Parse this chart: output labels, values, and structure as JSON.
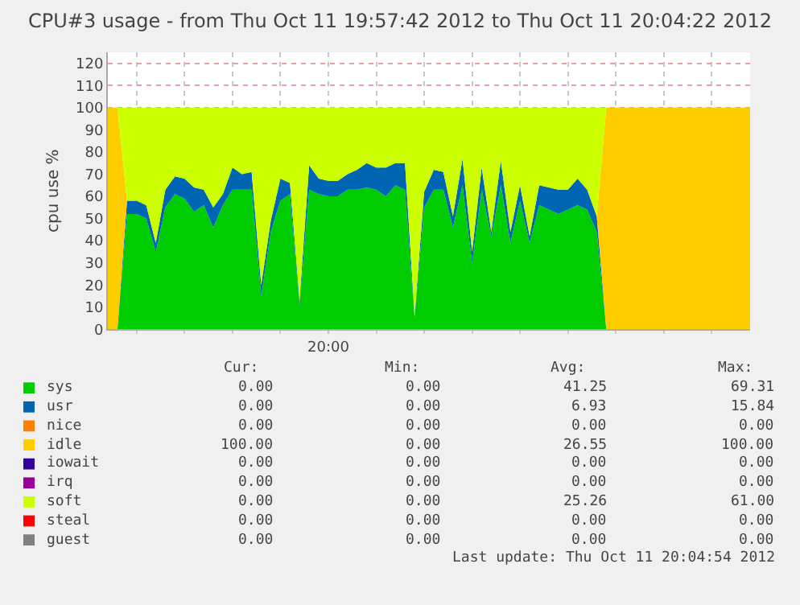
{
  "chart_data": {
    "type": "area",
    "stacked": true,
    "title": "CPU#3 usage - from Thu Oct 11 19:57:42 2012 to Thu Oct 11 20:04:22 2012",
    "ylabel": "cpu use %",
    "categories": [
      null,
      null,
      null,
      null,
      null,
      null,
      null,
      null,
      null,
      null,
      null,
      null,
      null,
      null,
      null,
      null,
      null,
      null,
      null,
      null,
      null,
      null,
      null,
      "20:00",
      null,
      null,
      null,
      null,
      null,
      null,
      null,
      null,
      null,
      null,
      null,
      null,
      null,
      null,
      null,
      null,
      null,
      null,
      null,
      null,
      null,
      null,
      null,
      null,
      null,
      null,
      null,
      null,
      null,
      null,
      null,
      null,
      null,
      null,
      null,
      null,
      null,
      null,
      null,
      null,
      null,
      null,
      null,
      null
    ],
    "series": [
      {
        "name": "sys",
        "color": "#00cc00",
        "values": [
          0,
          0,
          52,
          52,
          50,
          35,
          55,
          61,
          59,
          53,
          56,
          46,
          56,
          63,
          63,
          63,
          15,
          44,
          58,
          61,
          11,
          63,
          61,
          60,
          60,
          63,
          63,
          64,
          63,
          60,
          65,
          63,
          5,
          55,
          63,
          63,
          46,
          65,
          30,
          63,
          42,
          65,
          39,
          58,
          39,
          56,
          54,
          52,
          54,
          56,
          54,
          44,
          0,
          0,
          0,
          0,
          0,
          0,
          0,
          0,
          0,
          0,
          0,
          0,
          0,
          0,
          0,
          0
        ]
      },
      {
        "name": "usr",
        "color": "#0066b3",
        "values": [
          0,
          0,
          6,
          6,
          6,
          4,
          8,
          8,
          9,
          11,
          7,
          9,
          5,
          10,
          7,
          8,
          5,
          5,
          10,
          5,
          2,
          11,
          7,
          7,
          7,
          7,
          9,
          11,
          10,
          13,
          10,
          12,
          1,
          7,
          9,
          8,
          5,
          12,
          5,
          10,
          2,
          11,
          5,
          7,
          3,
          9,
          10,
          11,
          9,
          12,
          9,
          7,
          0,
          0,
          0,
          0,
          0,
          0,
          0,
          0,
          0,
          0,
          0,
          0,
          0,
          0,
          0,
          0
        ]
      },
      {
        "name": "nice",
        "color": "#ff8000",
        "values": [
          null,
          null,
          null,
          null,
          null,
          null,
          null,
          null,
          null,
          null,
          null,
          null,
          null,
          null,
          null,
          null,
          null,
          null,
          null,
          null,
          null,
          null,
          null,
          null,
          null,
          null,
          null,
          null,
          null,
          null,
          null,
          null,
          null,
          null,
          null,
          null,
          null,
          null,
          null,
          null,
          null,
          null,
          null,
          null,
          null,
          null,
          null,
          null,
          null,
          null,
          null,
          null,
          null,
          null,
          null,
          null,
          null,
          null,
          null,
          null,
          null,
          null,
          null,
          null,
          null,
          null,
          null,
          null
        ]
      },
      {
        "name": "idle",
        "color": "#ffcc00",
        "values": [
          100,
          100,
          0,
          0,
          0,
          0,
          0,
          0,
          0,
          0,
          0,
          0,
          0,
          0,
          0,
          0,
          0,
          0,
          0,
          0,
          0,
          0,
          0,
          0,
          0,
          0,
          0,
          0,
          0,
          0,
          0,
          0,
          0,
          0,
          0,
          0,
          0,
          0,
          0,
          0,
          0,
          0,
          0,
          0,
          0,
          0,
          0,
          0,
          0,
          0,
          0,
          0,
          100,
          100,
          100,
          100,
          100,
          100,
          100,
          100,
          100,
          100,
          100,
          100,
          100,
          100,
          100,
          100
        ]
      },
      {
        "name": "iowait",
        "color": "#330099",
        "values": [
          null,
          null,
          null,
          null,
          null,
          null,
          null,
          null,
          null,
          null,
          null,
          null,
          null,
          null,
          null,
          null,
          null,
          null,
          null,
          null,
          null,
          null,
          null,
          null,
          null,
          null,
          null,
          null,
          null,
          null,
          null,
          null,
          null,
          null,
          null,
          null,
          null,
          null,
          null,
          null,
          null,
          null,
          null,
          null,
          null,
          null,
          null,
          null,
          null,
          null,
          null,
          null,
          null,
          null,
          null,
          null,
          null,
          null,
          null,
          null,
          null,
          null,
          null,
          null,
          null,
          null,
          null,
          null
        ]
      },
      {
        "name": "irq",
        "color": "#990099",
        "values": [
          null,
          null,
          null,
          null,
          null,
          null,
          null,
          null,
          null,
          null,
          null,
          null,
          null,
          null,
          null,
          null,
          null,
          null,
          null,
          null,
          null,
          null,
          null,
          null,
          null,
          null,
          null,
          null,
          null,
          null,
          null,
          null,
          null,
          null,
          null,
          null,
          null,
          null,
          null,
          null,
          null,
          null,
          null,
          null,
          null,
          null,
          null,
          null,
          null,
          null,
          null,
          null,
          null,
          null,
          null,
          null,
          null,
          null,
          null,
          null,
          null,
          null,
          null,
          null,
          null,
          null,
          null,
          null
        ]
      },
      {
        "name": "soft",
        "color": "#ccff00",
        "values": [
          0,
          0,
          42,
          42,
          44,
          61,
          37,
          31,
          32,
          36,
          37,
          45,
          39,
          27,
          30,
          29,
          80,
          51,
          32,
          34,
          87,
          26,
          32,
          33,
          33,
          30,
          28,
          25,
          27,
          27,
          25,
          25,
          94,
          38,
          28,
          29,
          49,
          23,
          65,
          27,
          56,
          24,
          56,
          35,
          58,
          35,
          36,
          37,
          37,
          32,
          37,
          49,
          0,
          0,
          0,
          0,
          0,
          0,
          0,
          0,
          0,
          0,
          0,
          0,
          0,
          0,
          0,
          0
        ]
      },
      {
        "name": "steal",
        "color": "#ff0000",
        "values": [
          null,
          null,
          null,
          null,
          null,
          null,
          null,
          null,
          null,
          null,
          null,
          null,
          null,
          null,
          null,
          null,
          null,
          null,
          null,
          null,
          null,
          null,
          null,
          null,
          null,
          null,
          null,
          null,
          null,
          null,
          null,
          null,
          null,
          null,
          null,
          null,
          null,
          null,
          null,
          null,
          null,
          null,
          null,
          null,
          null,
          null,
          null,
          null,
          null,
          null,
          null,
          null,
          null,
          null,
          null,
          null,
          null,
          null,
          null,
          null,
          null,
          null,
          null,
          null,
          null,
          null,
          null,
          null
        ]
      },
      {
        "name": "guest",
        "color": "#808080",
        "values": [
          null,
          null,
          null,
          null,
          null,
          null,
          null,
          null,
          null,
          null,
          null,
          null,
          null,
          null,
          null,
          null,
          null,
          null,
          null,
          null,
          null,
          null,
          null,
          null,
          null,
          null,
          null,
          null,
          null,
          null,
          null,
          null,
          null,
          null,
          null,
          null,
          null,
          null,
          null,
          null,
          null,
          null,
          null,
          null,
          null,
          null,
          null,
          null,
          null,
          null,
          null,
          null,
          null,
          null,
          null,
          null,
          null,
          null,
          null,
          null,
          null,
          null,
          null,
          null,
          null,
          null,
          null,
          null
        ]
      }
    ],
    "ylim": [
      0,
      125
    ],
    "yticks": [
      0,
      10,
      20,
      30,
      40,
      50,
      60,
      70,
      80,
      90,
      100,
      110,
      120
    ],
    "grid": true,
    "legend": "bottom",
    "annotations": [
      "Cur:",
      "Min:",
      "Avg:",
      "Max:",
      "0.00",
      "0.00",
      "41.25",
      "69.31",
      "0.00",
      "0.00",
      "6.93",
      "15.84",
      "0.00",
      "0.00",
      "0.00",
      "0.00",
      "100.00",
      "0.00",
      "26.55",
      "100.00",
      "0.00",
      "0.00",
      "0.00",
      "0.00",
      "0.00",
      "0.00",
      "0.00",
      "0.00",
      "0.00",
      "0.00",
      "25.26",
      "61.00",
      "0.00",
      "0.00",
      "0.00",
      "0.00",
      "0.00",
      "0.00",
      "0.00",
      "0.00",
      "Last update: Thu Oct 11 20:04:54 2012"
    ]
  }
}
